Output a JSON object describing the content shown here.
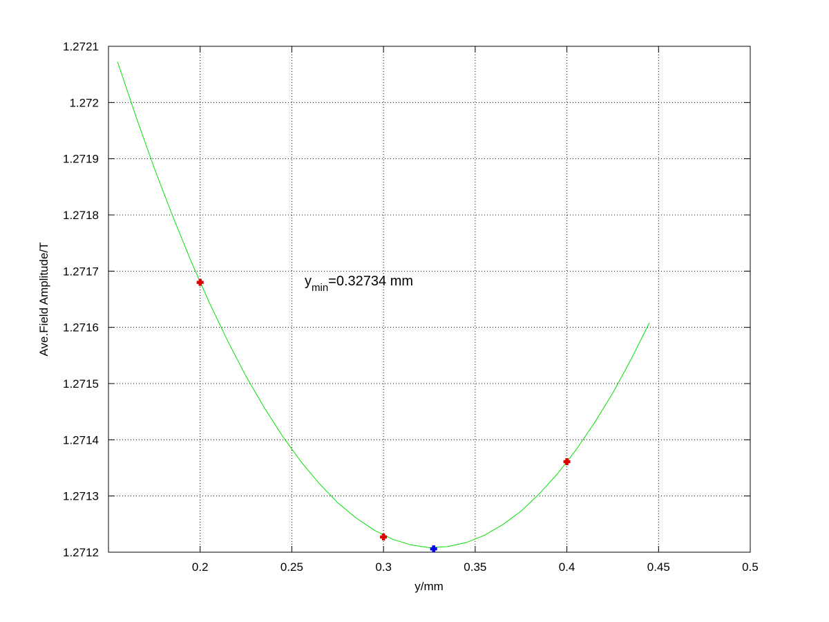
{
  "chart_data": {
    "type": "line",
    "xlabel": "y/mm",
    "ylabel": "Ave.Field Amplitude/T",
    "annotation": {
      "base": "y",
      "subscript": "min",
      "text": "=0.32734 mm"
    },
    "xlim": [
      0.15,
      0.5
    ],
    "xticks": [
      0.2,
      0.25,
      0.3,
      0.35,
      0.4,
      0.45,
      0.5
    ],
    "ylim": [
      1.2712,
      1.2721
    ],
    "yticks": [
      1.2712,
      1.2713,
      1.2714,
      1.2715,
      1.2716,
      1.2717,
      1.2718,
      1.2719,
      1.272,
      1.2721
    ],
    "grid": true,
    "series": [
      {
        "type": "line",
        "color": "#00e000",
        "x": [
          0.155,
          0.165,
          0.175,
          0.185,
          0.195,
          0.205,
          0.215,
          0.225,
          0.235,
          0.245,
          0.255,
          0.265,
          0.275,
          0.285,
          0.295,
          0.305,
          0.315,
          0.325,
          0.335,
          0.345,
          0.355,
          0.365,
          0.375,
          0.385,
          0.395,
          0.405,
          0.415,
          0.425,
          0.435,
          0.445
        ],
        "values": [
          1.272072,
          1.271975,
          1.271883,
          1.271798,
          1.271718,
          1.271644,
          1.271576,
          1.271513,
          1.271457,
          1.271406,
          1.271361,
          1.271322,
          1.271288,
          1.271261,
          1.271239,
          1.271223,
          1.271213,
          1.271208,
          1.27121,
          1.271217,
          1.27123,
          1.271249,
          1.271273,
          1.271304,
          1.27134,
          1.271382,
          1.27143,
          1.271483,
          1.271543,
          1.271608
        ]
      },
      {
        "type": "scatter",
        "color": "#dd0000",
        "x": [
          0.2,
          0.3,
          0.4
        ],
        "values": [
          1.27168,
          1.271227,
          1.271361
        ]
      },
      {
        "type": "scatter",
        "color": "#0000ee",
        "x": [
          0.32734
        ],
        "values": [
          1.271206
        ]
      }
    ]
  }
}
